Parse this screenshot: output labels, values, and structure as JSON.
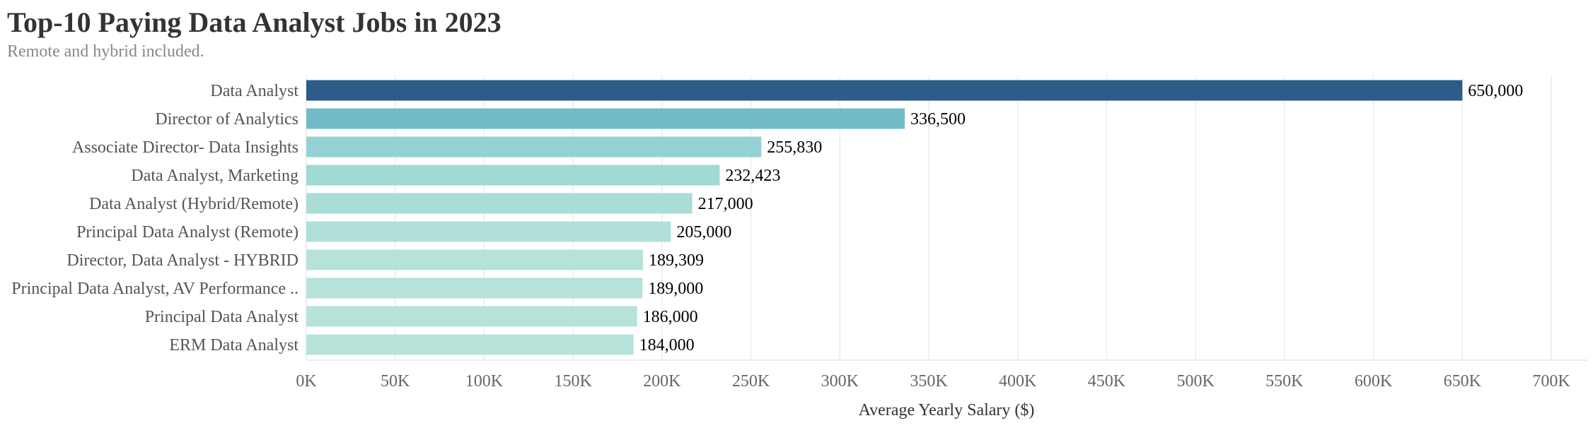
{
  "title": "Top-10 Paying Data Analyst Jobs in 2023",
  "subtitle": "Remote and hybrid included.",
  "chart_data": {
    "type": "bar",
    "orientation": "horizontal",
    "categories": [
      "Data Analyst",
      "Director of Analytics",
      "Associate Director- Data Insights",
      "Data Analyst, Marketing",
      "Data Analyst (Hybrid/Remote)",
      "Principal Data Analyst (Remote)",
      "Director, Data Analyst - HYBRID",
      "Principal Data Analyst, AV Performance ..",
      "Principal Data Analyst",
      "ERM Data Analyst"
    ],
    "values": [
      650000,
      336500,
      255830,
      232423,
      217000,
      205000,
      189309,
      189000,
      186000,
      184000
    ],
    "value_labels": [
      "650,000",
      "336,500",
      "255,830",
      "232,423",
      "217,000",
      "205,000",
      "189,309",
      "189,000",
      "186,000",
      "184,000"
    ],
    "bar_colors": [
      "#2b5c8a",
      "#71bcc6",
      "#94d1d3",
      "#a1d9d5",
      "#a9ddd6",
      "#afdfd8",
      "#b5e2d9",
      "#b6e2d9",
      "#b7e3da",
      "#b8e3da"
    ],
    "xlabel": "Average Yearly Salary ($)",
    "ylabel": "",
    "xlim": [
      0,
      700000
    ],
    "xticks": [
      0,
      50000,
      100000,
      150000,
      200000,
      250000,
      300000,
      350000,
      400000,
      450000,
      500000,
      550000,
      600000,
      650000,
      700000
    ],
    "xtick_labels": [
      "0K",
      "50K",
      "100K",
      "150K",
      "200K",
      "250K",
      "300K",
      "350K",
      "400K",
      "450K",
      "500K",
      "550K",
      "600K",
      "650K",
      "700K"
    ],
    "grid": true,
    "legend": "none"
  }
}
